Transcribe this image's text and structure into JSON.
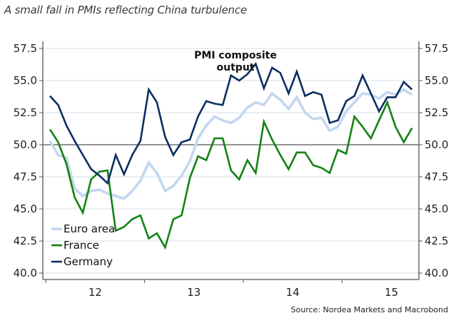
{
  "headline": "A small fall in PMIs reflecting China turbulence",
  "source": "Source: Nordea Markets and Macrobond",
  "colors": {
    "euro_area": "#c3d7ef",
    "france": "#148214",
    "germany": "#0b2f61",
    "grid": "#dce6ee",
    "axis": "#555555",
    "zero_line": "#555555"
  },
  "chart_data": {
    "type": "line",
    "title": "PMI composite output",
    "title_lines": [
      "PMI composite",
      "output"
    ],
    "xlabel": "",
    "ylabel": "",
    "x_start": "2012-01",
    "x_end": "2015-09",
    "frequency": "monthly",
    "x_tick_labels": [
      "12",
      "13",
      "14",
      "15"
    ],
    "y_tick_labels": [
      "57.5",
      "55.0",
      "52.5",
      "50.0",
      "47.5",
      "45.0",
      "42.5",
      "40.0"
    ],
    "ylim": [
      40,
      57.5
    ],
    "y_ticks": [
      40,
      42.5,
      45,
      47.5,
      50,
      52.5,
      55,
      57.5
    ],
    "reference_line": 50,
    "grid": true,
    "dual_y_axis": true,
    "legend_position": "bottom-left",
    "series": [
      {
        "name": "Euro area",
        "color_key": "euro_area",
        "values": [
          50.3,
          49.2,
          49.0,
          46.6,
          46.0,
          46.4,
          46.5,
          46.2,
          46.0,
          45.8,
          46.4,
          47.2,
          48.6,
          47.8,
          46.4,
          46.8,
          47.6,
          48.7,
          50.5,
          51.5,
          52.2,
          51.9,
          51.7,
          52.1,
          52.9,
          53.3,
          53.1,
          54.0,
          53.5,
          52.8,
          53.7,
          52.5,
          52.0,
          52.1,
          51.1,
          51.4,
          52.6,
          53.3,
          54.0,
          53.9,
          53.6,
          54.1,
          53.9,
          54.3,
          53.9
        ]
      },
      {
        "name": "France",
        "color_key": "france",
        "values": [
          51.2,
          50.2,
          48.5,
          45.9,
          44.7,
          47.3,
          47.9,
          48.0,
          43.3,
          43.6,
          44.2,
          44.5,
          42.7,
          43.1,
          42.0,
          44.2,
          44.5,
          47.4,
          49.1,
          48.8,
          50.5,
          50.5,
          48.0,
          47.3,
          48.8,
          47.8,
          51.8,
          50.4,
          49.2,
          48.1,
          49.4,
          49.4,
          48.4,
          48.2,
          47.8,
          49.6,
          49.3,
          52.2,
          51.4,
          50.5,
          51.9,
          53.3,
          51.4,
          50.2,
          51.3
        ]
      },
      {
        "name": "Germany",
        "color_key": "germany",
        "values": [
          53.8,
          53.1,
          51.5,
          50.3,
          49.2,
          48.1,
          47.6,
          47.0,
          49.2,
          47.7,
          49.2,
          50.3,
          54.3,
          53.3,
          50.6,
          49.2,
          50.2,
          50.4,
          52.2,
          53.4,
          53.2,
          53.1,
          55.4,
          55.0,
          55.5,
          56.3,
          54.4,
          56.0,
          55.6,
          54.0,
          55.7,
          53.8,
          54.1,
          53.9,
          51.7,
          51.9,
          53.4,
          53.8,
          55.4,
          54.0,
          52.6,
          53.7,
          53.7,
          54.9,
          54.3
        ]
      }
    ]
  }
}
